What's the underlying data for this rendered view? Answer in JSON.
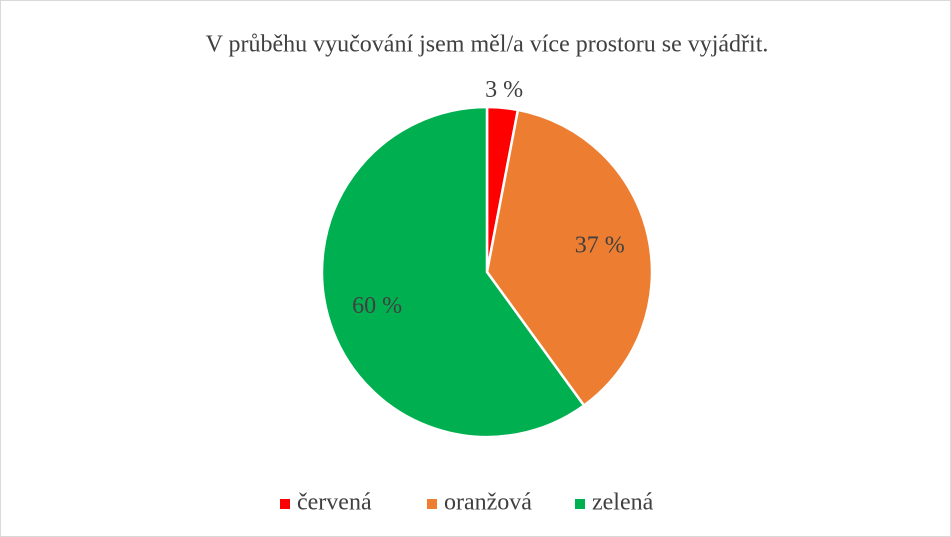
{
  "chart_data": {
    "type": "pie",
    "title": "V průběhu vyučování jsem měl/a více prostoru se vyjádřit.",
    "categories": [
      "červená",
      "oranžová",
      "zelená"
    ],
    "values": [
      3,
      37,
      60
    ],
    "value_labels": [
      "3 %",
      "37 %",
      "60 %"
    ],
    "colors": [
      "#ff0000",
      "#ed7d31",
      "#00b050"
    ],
    "legend": "bottom"
  }
}
